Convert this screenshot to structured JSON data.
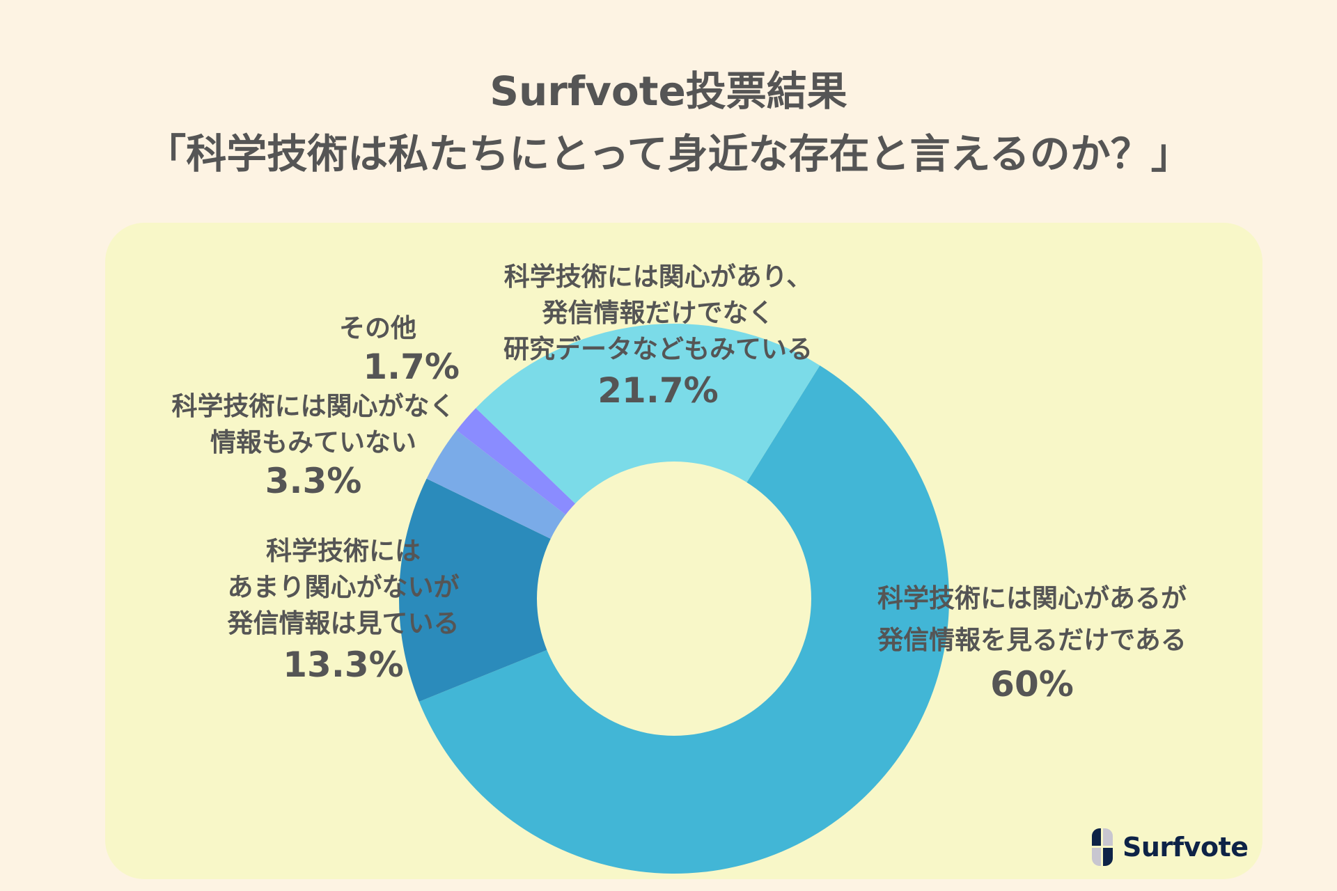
{
  "header": {
    "title_line1": "Surfvote投票結果",
    "title_line2": "「科学技術は私たちにとって身近な存在と言えるのか？」"
  },
  "colors": {
    "page_background": "#fdf3e3",
    "panel_background": "#f8f7c8",
    "text": "#555555",
    "logo_navy": "#0e2347",
    "logo_gray": "#c8c6d0"
  },
  "chart_data": {
    "type": "pie",
    "subtype": "donut",
    "title": "Surfvote投票結果「科学技術は私たちにとって身近な存在と言えるのか？」",
    "categories": [
      "科学技術には関心があるが発信情報を見るだけである",
      "科学技術にはあまり関心がないが発信情報は見ている",
      "科学技術には関心がなく情報もみていない",
      "その他",
      "科学技術には関心があり、発信情報だけでなく研究データなどもみている"
    ],
    "values": [
      60,
      13.3,
      3.3,
      1.7,
      21.7
    ],
    "unit": "%",
    "colors": [
      "#42b6d6",
      "#2b8bbb",
      "#7aabe8",
      "#8a8cff",
      "#7bdbe8"
    ],
    "start_angle_deg": 32,
    "direction": "clockwise",
    "legend": "none (direct labels)"
  },
  "labels": {
    "slice_60": {
      "lines": [
        "科学技術には関心があるが",
        "発信情報を見るだけである"
      ],
      "pct": "60%"
    },
    "slice_13": {
      "lines": [
        "科学技術には",
        "あまり関心がないが",
        "発信情報は見ている"
      ],
      "pct": "13.3%"
    },
    "slice_3": {
      "lines": [
        "科学技術には関心がなく",
        "情報もみていない"
      ],
      "pct": "3.3%"
    },
    "slice_1": {
      "lines": [
        "その他"
      ],
      "pct": "1.7%"
    },
    "slice_21": {
      "lines": [
        "科学技術には関心があり、",
        "発信情報だけでなく",
        "研究データなどもみている"
      ],
      "pct": "21.7%"
    }
  },
  "logo": {
    "text": "Surfvote",
    "icon": "surfvote-logo-icon"
  }
}
